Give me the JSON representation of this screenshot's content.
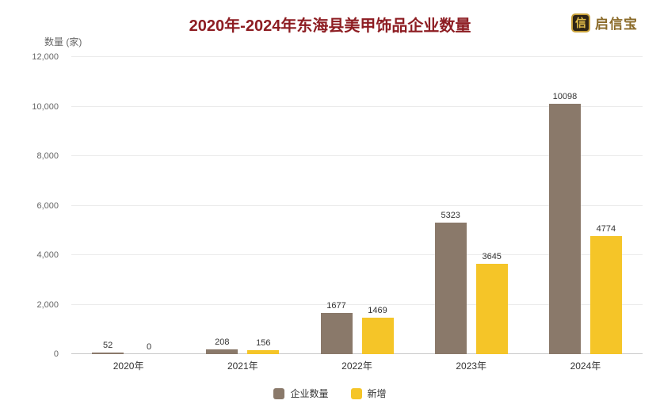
{
  "logo": {
    "text": "启信宝",
    "icon_char": "信",
    "color": "#8a6a28"
  },
  "colors": {
    "title": "#8d1d22",
    "series_enterprise": "#8a796a",
    "series_new": "#f5c528",
    "axis_text": "#666666",
    "value_label": "#333333",
    "gridline": "#ebebeb",
    "axis_line": "#c9c9c9"
  },
  "chart_data": {
    "type": "bar",
    "title": "2020年-2024年东海县美甲饰品企业数量",
    "ylabel": "数量 (家)",
    "xlabel": "",
    "categories": [
      "2020年",
      "2021年",
      "2022年",
      "2023年",
      "2024年"
    ],
    "series": [
      {
        "name": "企业数量",
        "color": "#8a796a",
        "values": [
          52,
          208,
          1677,
          5323,
          10098
        ]
      },
      {
        "name": "新增",
        "color": "#f5c528",
        "values": [
          0,
          156,
          1469,
          3645,
          4774
        ]
      }
    ],
    "ylim": [
      0,
      12000
    ],
    "y_ticks": [
      0,
      2000,
      4000,
      6000,
      8000,
      10000,
      12000
    ],
    "grid": true,
    "legend_position": "bottom"
  }
}
